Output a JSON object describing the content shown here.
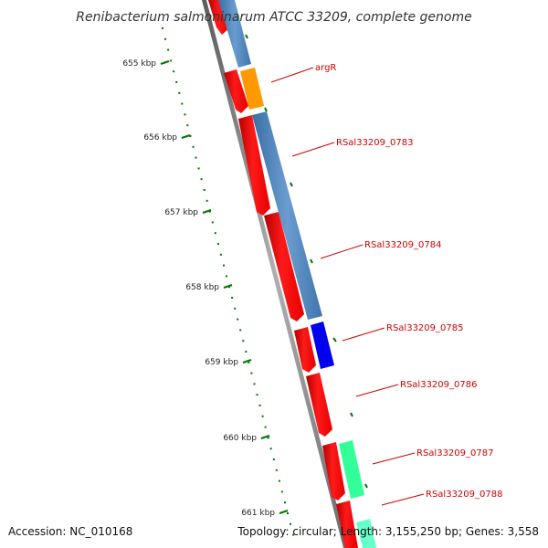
{
  "title": "Renibacterium salmoninarum ATCC 33209, complete genome",
  "footer": {
    "accession": "Accession: NC_010168",
    "topology": "Topology: circular; Length: 3,155,250 bp; Genes: 3,558"
  },
  "scale_labels": [
    "655 kbp",
    "656 kbp",
    "657 kbp",
    "658 kbp",
    "659 kbp",
    "660 kbp",
    "661 kbp"
  ],
  "gene_labels": [
    "argR",
    "RSal33209_0783",
    "RSal33209_0784",
    "RSal33209_0785",
    "RSal33209_0786",
    "RSal33209_0787",
    "RSal33209_0788"
  ],
  "colors": {
    "title": "#333333",
    "backbone": "#808080",
    "cds_red": "#ff0000",
    "gene_steelblue": "#4a7fb5",
    "gene_orange": "#ff9900",
    "gene_blue": "#0000ff",
    "gene_aqua": "#33ff99",
    "tick_green": "#007700",
    "label_red": "#d00000"
  }
}
